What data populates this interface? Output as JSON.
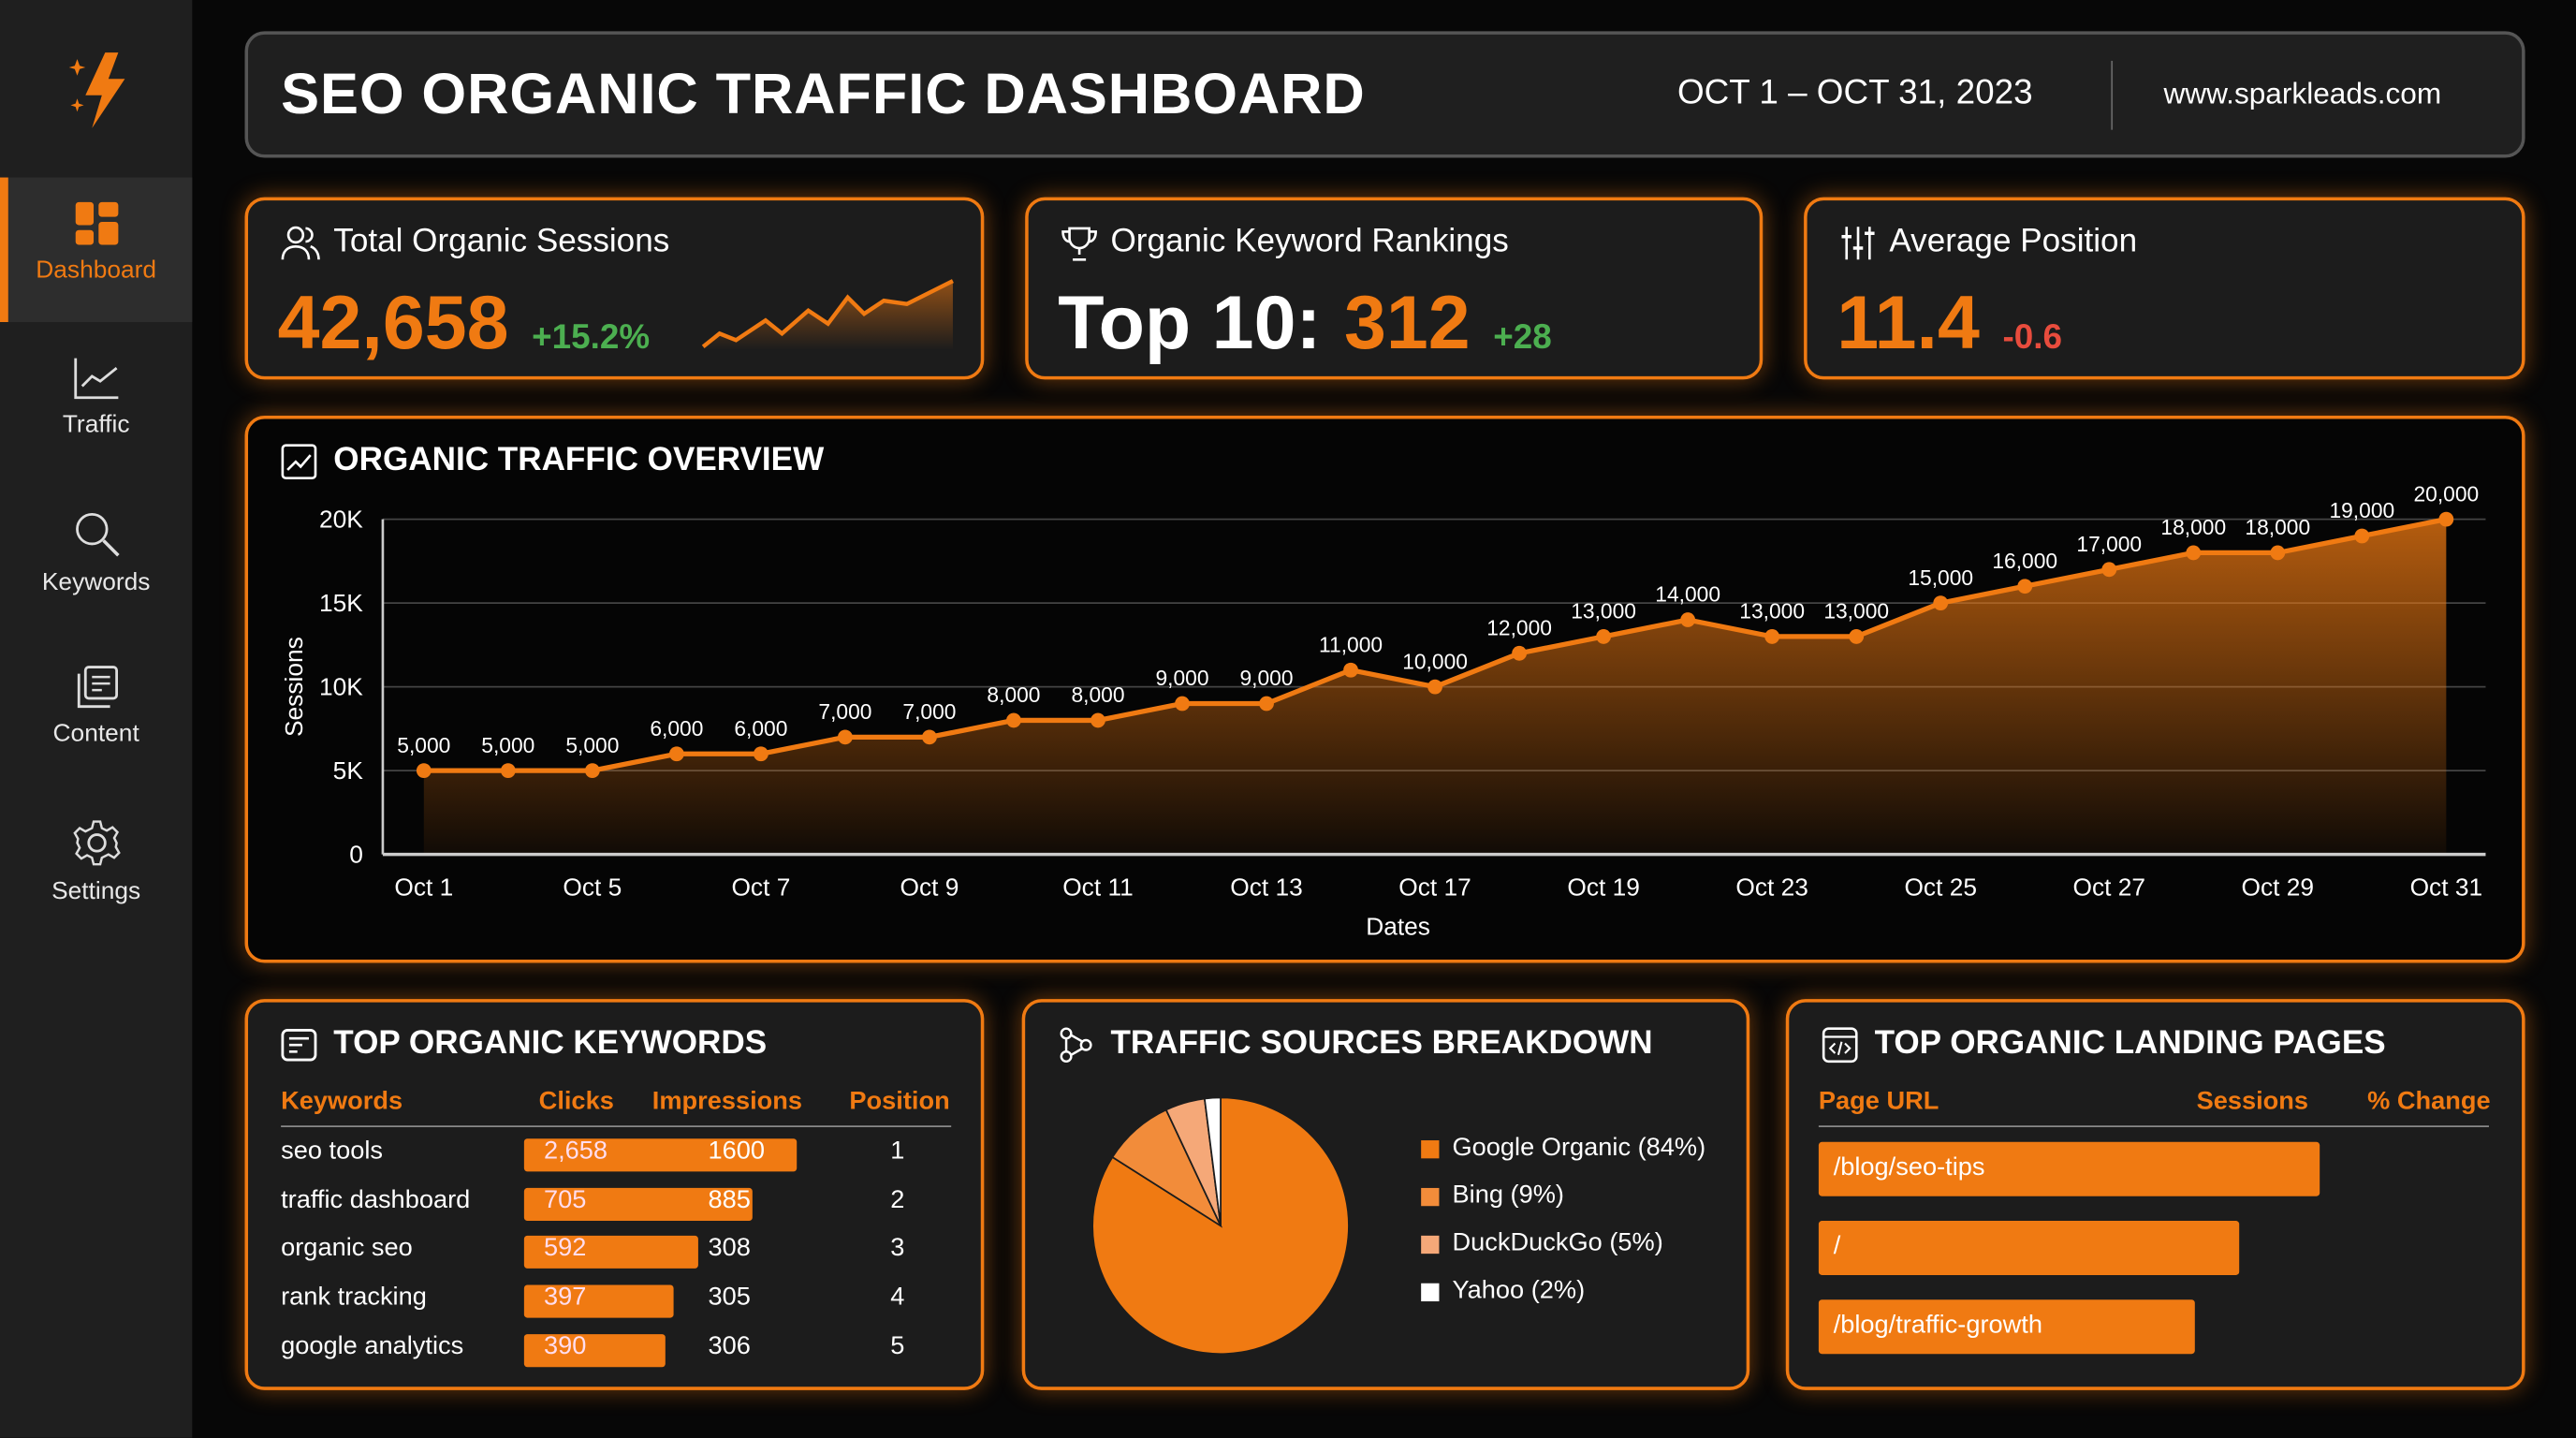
{
  "brand": {
    "logo_icon": "lightning-sparkle-icon",
    "accent": "#f07a12"
  },
  "sidebar": {
    "items": [
      {
        "label": "Dashboard",
        "icon": "dashboard-icon",
        "active": true
      },
      {
        "label": "Traffic",
        "icon": "trend-chart-icon"
      },
      {
        "label": "Keywords",
        "icon": "search-icon"
      },
      {
        "label": "Content",
        "icon": "documents-icon"
      },
      {
        "label": "Settings",
        "icon": "gear-icon"
      }
    ]
  },
  "header": {
    "title": "SEO ORGANIC TRAFFIC DASHBOARD",
    "date_range": "OCT 1 – OCT 31, 2023",
    "site": "www.sparkleads.com"
  },
  "kpis": {
    "sessions": {
      "label": "Total Organic Sessions",
      "value": "42,658",
      "change": "+15.2%"
    },
    "rankings": {
      "label": "Organic Keyword Rankings",
      "prefix": "Top 10:",
      "value": "312",
      "change": "+28"
    },
    "position": {
      "label": "Average Position",
      "value": "11.4",
      "change": "-0.6"
    }
  },
  "overview": {
    "title": "ORGANIC TRAFFIC OVERVIEW"
  },
  "chart_data": [
    {
      "type": "area",
      "title": "ORGANIC TRAFFIC OVERVIEW",
      "xlabel": "Dates",
      "ylabel": "Sessions",
      "ylim": [
        0,
        20000
      ],
      "grid": true,
      "yticks": [
        "0",
        "5K",
        "10K",
        "15K",
        "20K"
      ],
      "xticks": [
        "Oct 1",
        "Oct 5",
        "Oct 7",
        "Oct 9",
        "Oct 11",
        "Oct 13",
        "Oct 17",
        "Oct 19",
        "Oct 23",
        "Oct 25",
        "Oct 27",
        "Oct 29",
        "Oct 31"
      ],
      "values": [
        5000,
        5000,
        5000,
        6000,
        6000,
        7000,
        7000,
        8000,
        8000,
        9000,
        9000,
        11000,
        10000,
        12000,
        13000,
        14000,
        13000,
        13000,
        15000,
        16000,
        17000,
        18000,
        18000,
        19000,
        20000
      ],
      "labels": [
        "5,000",
        "5,000",
        "5,000",
        "6,000",
        "6,000",
        "7,000",
        "7,000",
        "8,000",
        "8,000",
        "9,000",
        "9,000",
        "11,000",
        "10,000",
        "12,000",
        "13,000",
        "14,000",
        "13,000",
        "13,000",
        "15,000",
        "16,000",
        "17,000",
        "18,000",
        "18,000",
        "19,000",
        "20,000"
      ]
    },
    {
      "type": "pie",
      "title": "TRAFFIC SOURCES BREAKDOWN",
      "legend": "right",
      "slices": [
        {
          "name": "Google Organic (84%)",
          "value": 84,
          "color": "#f07a12"
        },
        {
          "name": "Bing (9%)",
          "value": 9,
          "color": "#f28c3a"
        },
        {
          "name": "DuckDuckGo (5%)",
          "value": 5,
          "color": "#f5a878"
        },
        {
          "name": "Yahoo (2%)",
          "value": 2,
          "color": "#ffffff"
        }
      ]
    }
  ],
  "keywords": {
    "title": "TOP ORGANIC KEYWORDS",
    "columns": [
      "Keywords",
      "Clicks",
      "Impressions",
      "Position"
    ],
    "rows": [
      {
        "keyword": "seo tools",
        "clicks": "2,658",
        "impressions": "1600",
        "position": "1",
        "bar_pct": 100
      },
      {
        "keyword": "traffic dashboard",
        "clicks": "705",
        "impressions": "885",
        "position": "2",
        "bar_pct": 84
      },
      {
        "keyword": "organic seo",
        "clicks": "592",
        "impressions": "308",
        "position": "3",
        "bar_pct": 64
      },
      {
        "keyword": "rank tracking",
        "clicks": "397",
        "impressions": "305",
        "position": "4",
        "bar_pct": 55
      },
      {
        "keyword": "google analytics",
        "clicks": "390",
        "impressions": "306",
        "position": "5",
        "bar_pct": 52
      }
    ]
  },
  "landing": {
    "title": "TOP ORGANIC LANDING PAGES",
    "columns": [
      "Page URL",
      "Sessions",
      "% Change"
    ],
    "rows": [
      {
        "url": "/blog/seo-tips",
        "bar_pct": 100
      },
      {
        "url": "/",
        "bar_pct": 84
      },
      {
        "url": "/blog/traffic-growth",
        "bar_pct": 75
      }
    ]
  }
}
